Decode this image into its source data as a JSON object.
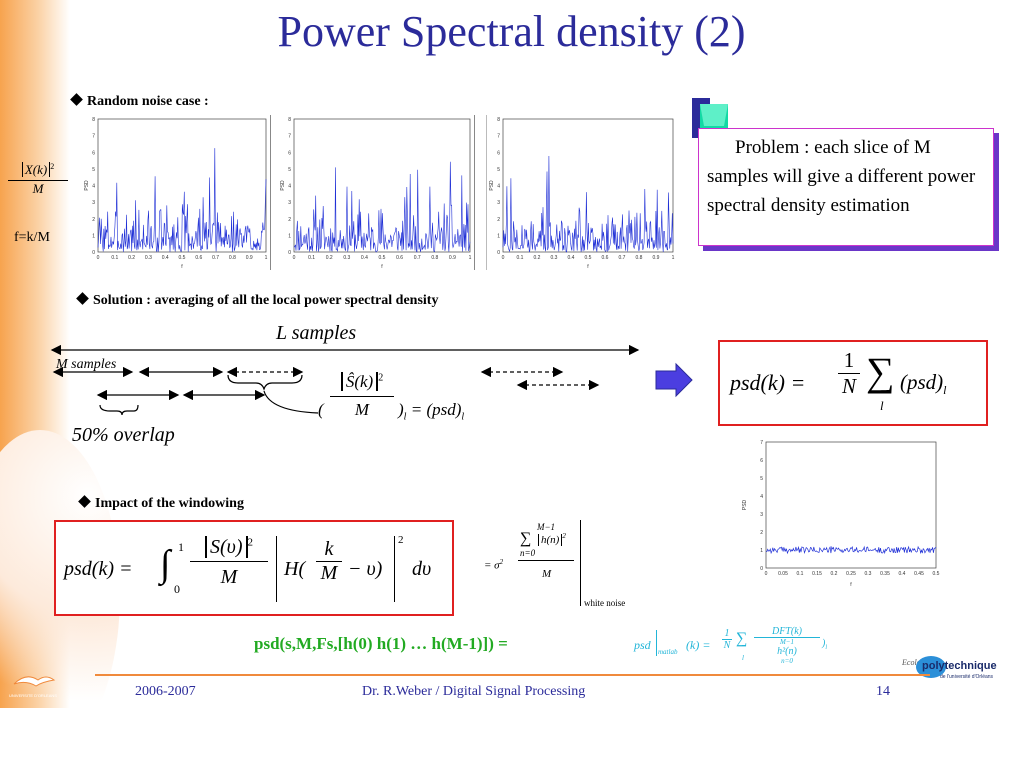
{
  "slide": {
    "title": "Power Spectral density (2)",
    "sections": {
      "random_noise": "Random noise case :",
      "solution": "Solution : averaging of all the local power spectral density",
      "windowing": "Impact of the windowing"
    },
    "left_formula": {
      "numerator": "X(k)",
      "exponent": "2",
      "denominator": "M",
      "caption": "f=k/M"
    },
    "problem_text": "Problem : each slice of M samples will give a different power spectral density estimation",
    "diagram": {
      "l_samples": "L samples",
      "m_samples": "M samples",
      "overlap": "50% overlap",
      "local_psd": {
        "numerator": "Ŝ(k)",
        "exponent": "2",
        "denominator": "M",
        "subscript": "l",
        "rhs": "(psd)"
      }
    },
    "psd_avg": {
      "lhs": "psd(k) =",
      "frac_num": "1",
      "frac_den": "N",
      "sum_index": "l",
      "term": "(psd)",
      "term_sub": "l"
    },
    "windowing_eq": {
      "lhs": "psd(k) =",
      "int_upper": "1",
      "int_lower": "0",
      "s_term": "S(υ)",
      "exp": "2",
      "den": "M",
      "h_term": "H(",
      "k": "k",
      "M": "M",
      "minus_nu": "− υ)",
      "d_nu": "dυ"
    },
    "white_noise": {
      "prefix": "= σ",
      "sum_upper": "M−1",
      "sum_lower": "n=0",
      "h_term": "h(n)",
      "exp": "2",
      "den": "M",
      "label": "white noise"
    },
    "matlab_cmd": "psd(s,M,Fs,[h(0) h(1) … h(M-1)]) =",
    "matlab_eq": {
      "lhs": "psd",
      "sub": "matlab",
      "arg": "(k) =",
      "num": "1",
      "den": "N",
      "sum_index": "l",
      "dft": "DFT(k)",
      "h2": "h²(n)",
      "sum_upper": "M−1",
      "sum_lower": "n=0",
      "term_sub": "l"
    },
    "footer": {
      "year": "2006-2007",
      "author": "Dr. R.Weber / Digital Signal Processing",
      "page": "14"
    },
    "logos": {
      "left_university": "UNIVERSITE D'ORLEANS",
      "polytech_top": "Ecole",
      "polytech": "polytechnique",
      "polytech_sub": "de l'université d'Orléans"
    }
  },
  "plots": {
    "noise_x_ticks": [
      "0",
      "0.1",
      "0.2",
      "0.3",
      "0.4",
      "0.5",
      "0.6",
      "0.7",
      "0.8",
      "0.9",
      "1"
    ],
    "noise_y_ticks": [
      "0",
      "1",
      "2",
      "3",
      "4",
      "5",
      "6",
      "7",
      "8"
    ],
    "avg_x_ticks": [
      "0",
      "0.05",
      "0.1",
      "0.15",
      "0.2",
      "0.25",
      "0.3",
      "0.35",
      "0.4",
      "0.45",
      "0.5"
    ],
    "avg_y_ticks": [
      "0",
      "1",
      "2",
      "3",
      "4",
      "5",
      "6",
      "7"
    ],
    "y_label": "PSD",
    "x_label": "f"
  },
  "colors": {
    "title": "#2b2b9a",
    "trace": "#1f2fd6",
    "red_box": "#e02020",
    "green": "#22aa22",
    "cyan": "#22b5d8",
    "footer_line": "#f08a3c"
  }
}
